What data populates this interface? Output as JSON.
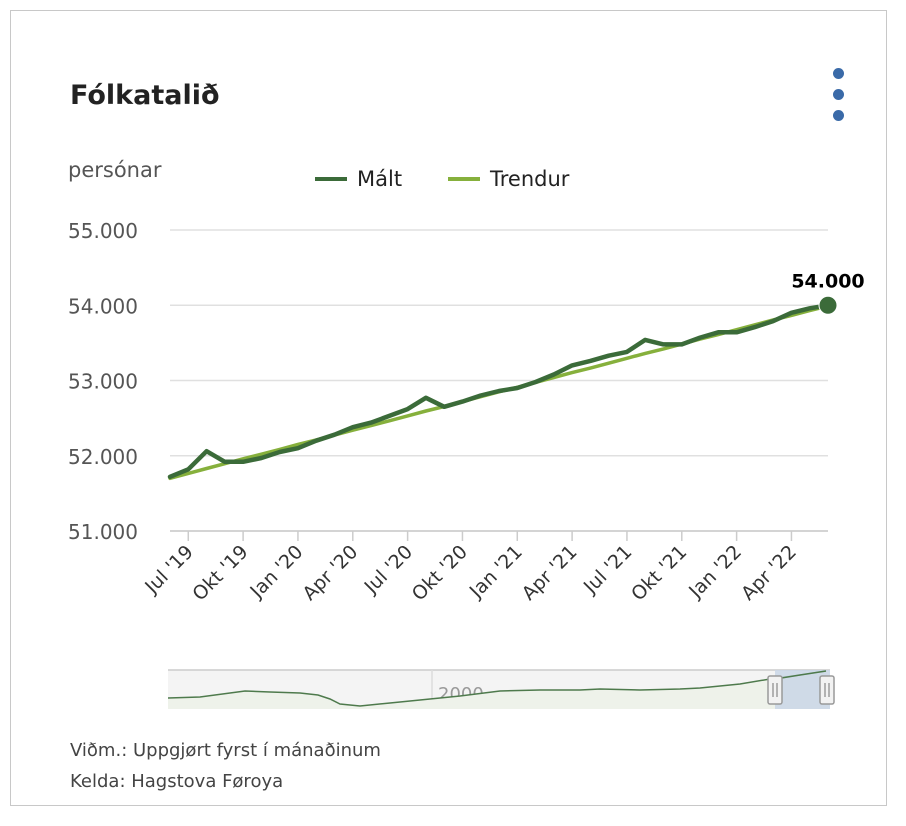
{
  "header": {
    "title": "Fólkatalið",
    "menu_icon": "kebab-menu-icon"
  },
  "colors": {
    "malt": "#3b6b39",
    "trendur": "#86b03c",
    "grid": "#e0e0e0",
    "menu": "#3a6aa8",
    "navigator_mask": "#c9d6e6"
  },
  "chart_data": {
    "type": "line",
    "ylabel": "persónar",
    "ylim": [
      51000,
      55000
    ],
    "yticks": [
      "51.000",
      "52.000",
      "53.000",
      "54.000",
      "55.000"
    ],
    "ytick_values": [
      51000,
      52000,
      53000,
      54000,
      55000
    ],
    "xlim": [
      0,
      36
    ],
    "xticks": [
      "Jul '19",
      "Okt '19",
      "Jan '20",
      "Apr '20",
      "Jul '20",
      "Okt '20",
      "Jan '21",
      "Apr '21",
      "Jul '21",
      "Okt '21",
      "Jan '22",
      "Apr '22"
    ],
    "xtick_values": [
      1,
      4,
      7,
      10,
      13,
      16,
      19,
      22,
      25,
      28,
      31,
      34
    ],
    "series": [
      {
        "name": "Mált",
        "color": "#3b6b39",
        "values": [
          51720,
          51820,
          52060,
          51920,
          51920,
          51970,
          52050,
          52100,
          52200,
          52280,
          52380,
          52440,
          52530,
          52620,
          52770,
          52650,
          52720,
          52800,
          52860,
          52900,
          52980,
          53080,
          53200,
          53260,
          53330,
          53380,
          53540,
          53480,
          53480,
          53570,
          53640,
          53640,
          53710,
          53790,
          53900,
          53960,
          54000
        ]
      },
      {
        "name": "Trendur",
        "color": "#86b03c",
        "values": [
          51700,
          51765,
          51830,
          51895,
          51960,
          52020,
          52085,
          52150,
          52210,
          52275,
          52340,
          52400,
          52465,
          52530,
          52595,
          52655,
          52720,
          52785,
          52850,
          52910,
          52975,
          53040,
          53105,
          53165,
          53230,
          53295,
          53360,
          53420,
          53485,
          53550,
          53610,
          53675,
          53740,
          53805,
          53865,
          53930,
          53990
        ]
      }
    ],
    "last_point_label": "54.000",
    "grid": true,
    "legend_position": "top",
    "navigator": {
      "label": "2000",
      "selection": "end"
    }
  },
  "footer": {
    "note": "Viðm.: Uppgjørt fyrst í mánaðinum",
    "source": "Kelda: Hagstova Føroya"
  }
}
